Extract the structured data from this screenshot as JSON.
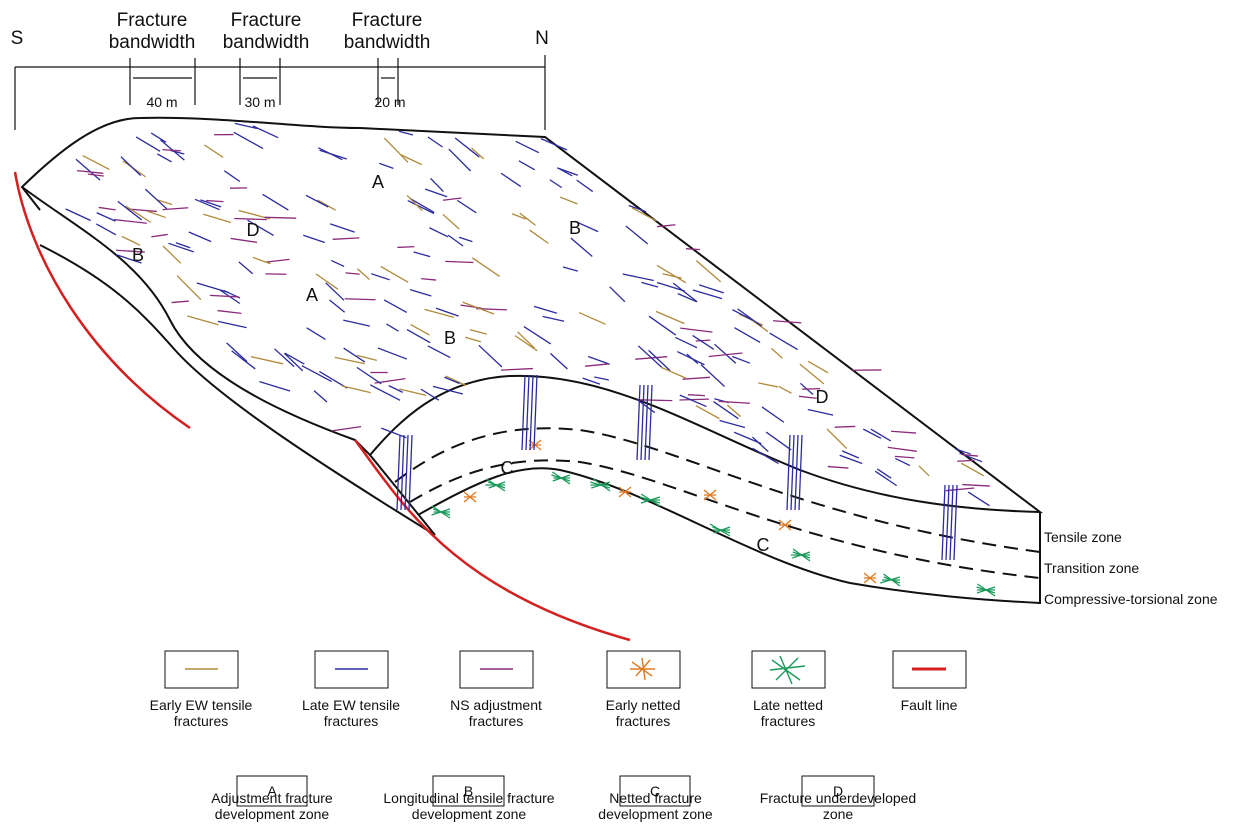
{
  "compass": {
    "south": "S",
    "north": "N"
  },
  "bandwidths": [
    {
      "label": "Fracture bandwidth",
      "width": "40 m"
    },
    {
      "label": "Fracture bandwidth",
      "width": "30 m"
    },
    {
      "label": "Fracture bandwidth",
      "width": "20 m"
    }
  ],
  "zone_letters": [
    "A",
    "A",
    "B",
    "B",
    "B",
    "D",
    "D",
    "C",
    "C"
  ],
  "layers": [
    "Tensile zone",
    "Transition zone",
    "Compressive-torsional zone"
  ],
  "legend": [
    "Early EW tensile fractures",
    "Late EW tensile fractures",
    "NS adjustment fractures",
    "Early netted fractures",
    "Late netted fractures",
    "Fault line"
  ],
  "zones": [
    {
      "letter": "A",
      "label": "Adjustment fracture development zone"
    },
    {
      "letter": "B",
      "label": "Longitudinal tensile fracture development zone"
    },
    {
      "letter": "C",
      "label": "Netted fracture development zone"
    },
    {
      "letter": "D",
      "label": "Fracture underdeveloped zone"
    }
  ]
}
